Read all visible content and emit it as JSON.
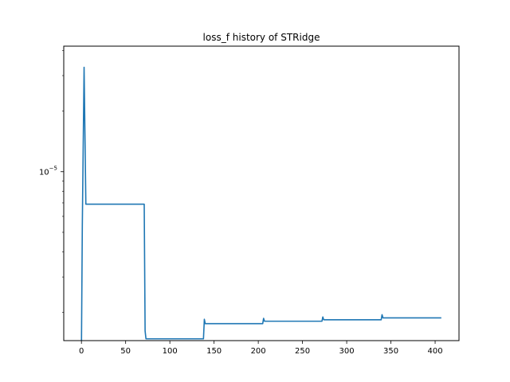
{
  "chart_data": {
    "type": "line",
    "title": "loss_f history of STRidge",
    "xlabel": "",
    "ylabel": "",
    "y_scale": "log",
    "xlim": [
      -20,
      427
    ],
    "ylim": [
      1.45e-06,
      4.2e-05
    ],
    "x_ticks": [
      0,
      50,
      100,
      150,
      200,
      250,
      300,
      350,
      400
    ],
    "x_tick_labels": [
      "0",
      "50",
      "100",
      "150",
      "200",
      "250",
      "300",
      "350",
      "400"
    ],
    "y_ticks": [
      1e-05
    ],
    "y_tick_labels": [
      "10^-5"
    ],
    "grid": false,
    "legend": "none",
    "series": [
      {
        "color": "#1f77b4",
        "x": [
          0,
          1,
          3,
          5,
          71,
          72,
          73,
          138,
          139,
          140,
          205,
          206,
          207,
          272,
          273,
          274,
          339,
          340,
          341,
          407
        ],
        "y": [
          1.3e-06,
          5.4e-06,
          3.3e-05,
          6.9e-06,
          6.9e-06,
          1.62e-06,
          1.48e-06,
          1.48e-06,
          1.85e-06,
          1.76e-06,
          1.76e-06,
          1.87e-06,
          1.81e-06,
          1.81e-06,
          1.9e-06,
          1.84e-06,
          1.84e-06,
          1.95e-06,
          1.88e-06,
          1.88e-06
        ]
      }
    ]
  }
}
